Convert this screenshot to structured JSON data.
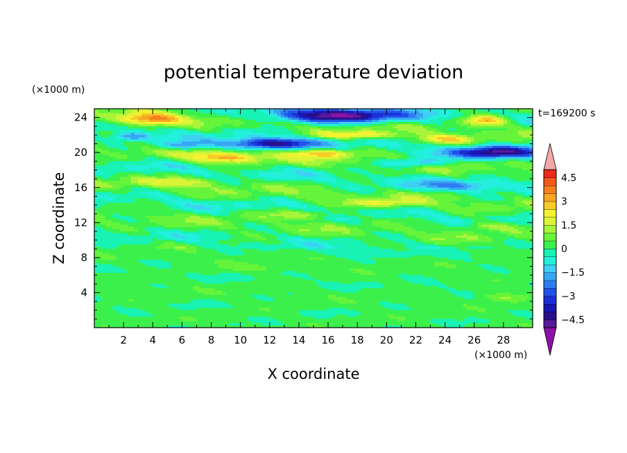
{
  "chart_data": {
    "type": "heatmap",
    "title": "potential temperature deviation",
    "xlabel": "X coordinate",
    "ylabel": "Z coordinate",
    "x_unit": "(×1000 m)",
    "y_unit": "(×1000 m)",
    "time_label": "t=169200 s",
    "xlim": [
      0,
      30
    ],
    "ylim": [
      0,
      25
    ],
    "xticks": [
      2,
      4,
      6,
      8,
      10,
      12,
      14,
      16,
      18,
      20,
      22,
      24,
      26,
      28
    ],
    "yticks": [
      4,
      8,
      12,
      16,
      20,
      24
    ],
    "colorbar": {
      "levels": [
        -5,
        -4.5,
        -4,
        -3.5,
        -3,
        -2.5,
        -2,
        -1.5,
        -1,
        -0.5,
        0,
        0.5,
        1,
        1.5,
        2,
        2.5,
        3,
        3.5,
        4,
        4.5,
        5
      ],
      "colors": [
        "#5a1a9e",
        "#2a0f8a",
        "#1a16b4",
        "#1c2fd6",
        "#1f52e8",
        "#2f7cf0",
        "#37a6f4",
        "#3fd0f4",
        "#22f0dc",
        "#18f2b4",
        "#3cf04c",
        "#66f43a",
        "#a8f43a",
        "#dcf436",
        "#f6f232",
        "#f8cc2a",
        "#f8a624",
        "#f6801e",
        "#f25a1a",
        "#ec2a1a"
      ],
      "under_color": "#8c12a8",
      "over_color": "#f2a8a8",
      "labels": [
        "4.5",
        "3",
        "1.5",
        "0",
        "−1.5",
        "−3",
        "−4.5"
      ],
      "label_values": [
        4.5,
        3,
        1.5,
        0,
        -1.5,
        -3,
        -4.5
      ]
    }
  }
}
